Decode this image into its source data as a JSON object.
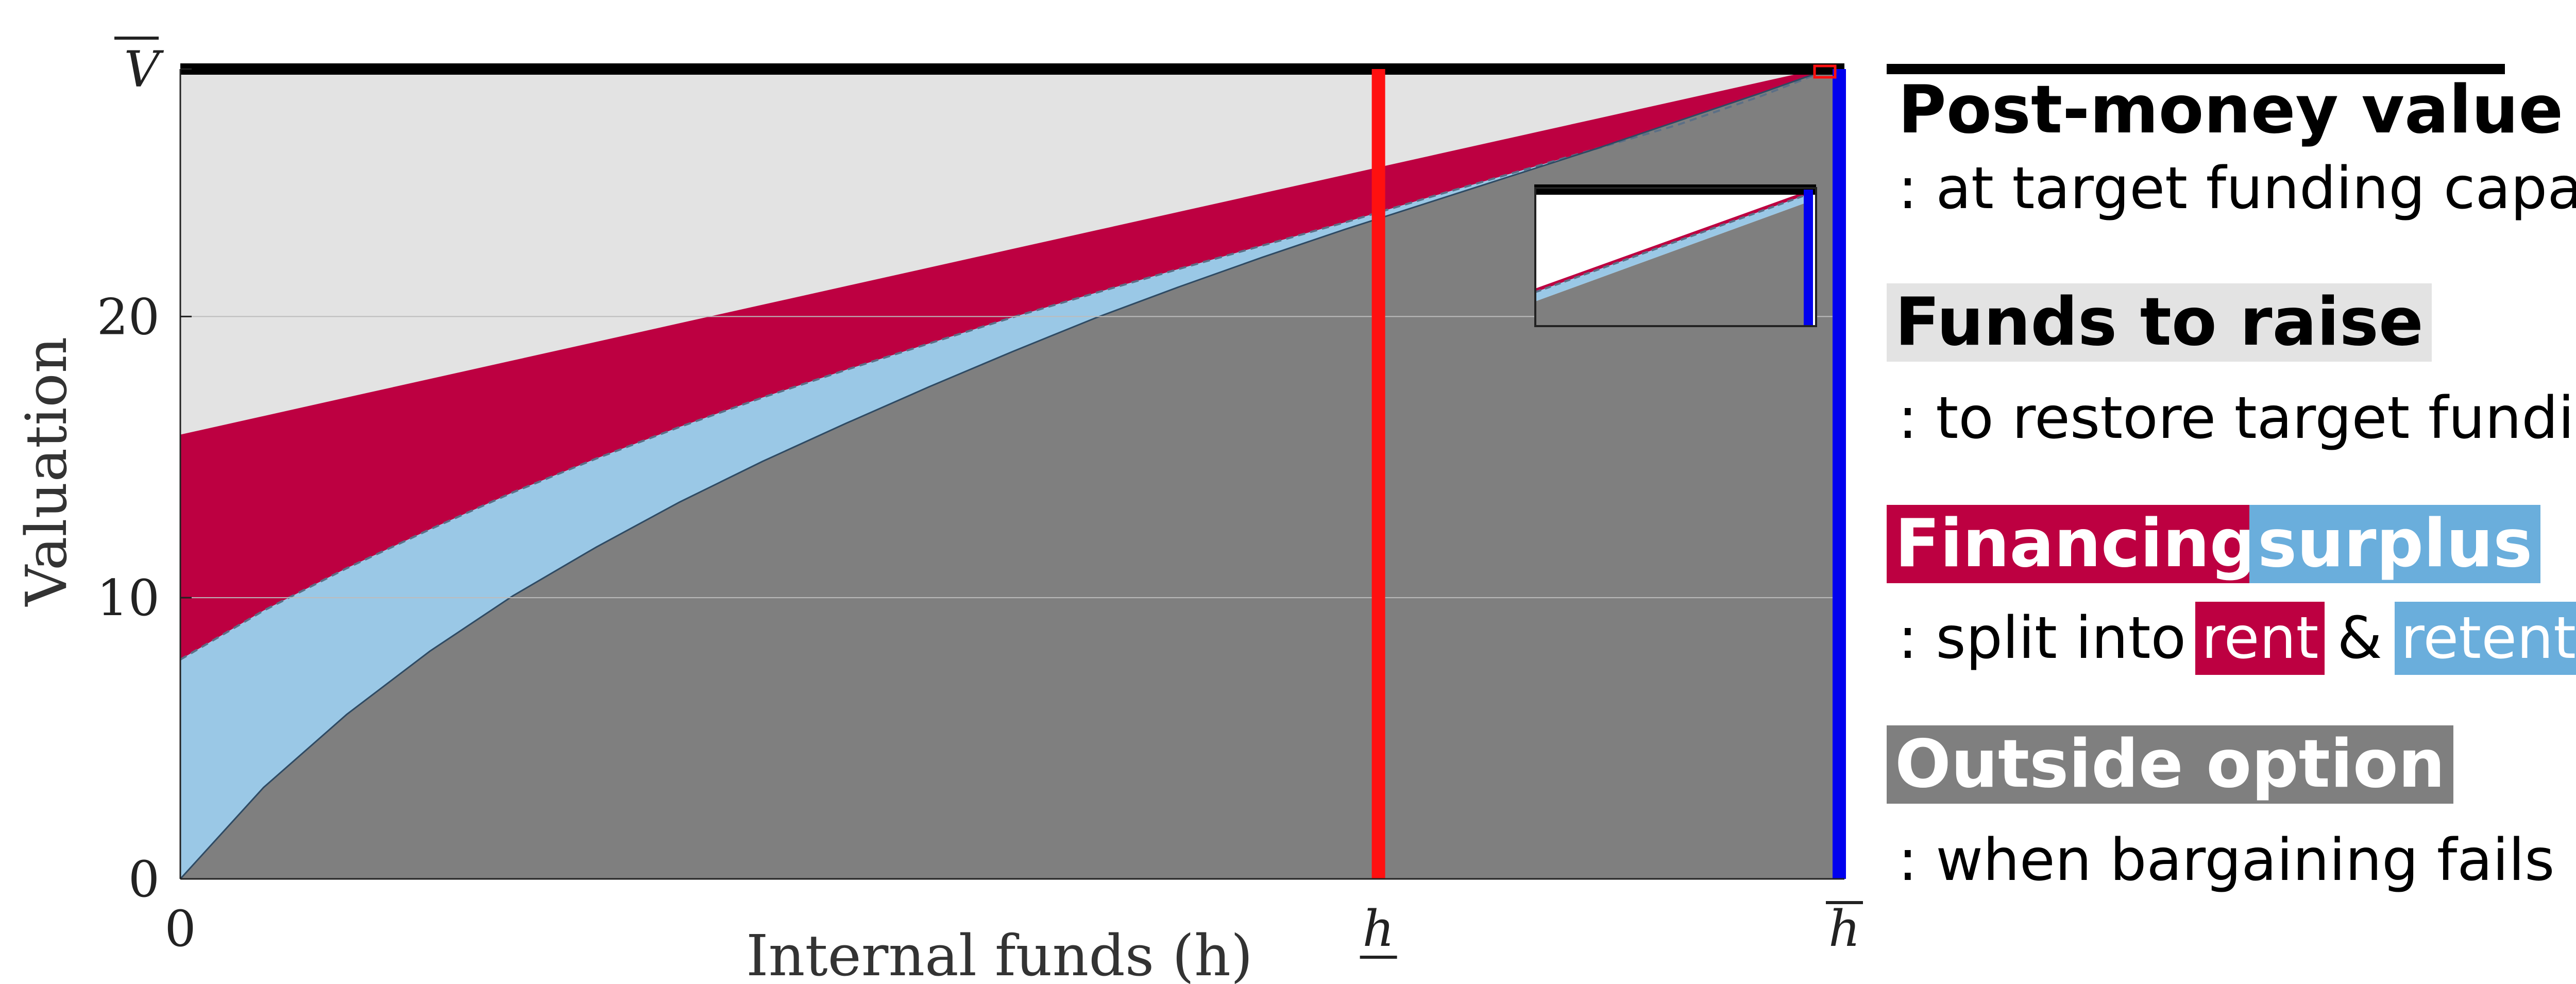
{
  "chart_data": {
    "type": "area",
    "xlabel": "Internal funds (h)",
    "ylabel": "Valuation",
    "x_ticks": [
      {
        "pos": 0,
        "label": "0"
      },
      {
        "pos": 0.72,
        "label": "h",
        "decor": "underline"
      },
      {
        "pos": 1.0,
        "label": "h",
        "decor": "overline"
      }
    ],
    "y_ticks": [
      {
        "value": 0,
        "label": "0"
      },
      {
        "value": 10,
        "label": "10"
      },
      {
        "value": 20,
        "label": "20"
      },
      {
        "value": 28.8,
        "label": "V",
        "decor": "overline"
      }
    ],
    "ylim": [
      0,
      28.8
    ],
    "xlim": [
      0,
      1.0
    ],
    "grid": "horizontal",
    "x": [
      0,
      0.05,
      0.1,
      0.15,
      0.2,
      0.25,
      0.3,
      0.35,
      0.4,
      0.45,
      0.5,
      0.55,
      0.6,
      0.65,
      0.7,
      0.75,
      0.8,
      0.85,
      0.9,
      0.95,
      1.0
    ],
    "series": [
      {
        "key": "post_money",
        "values": [
          28.8,
          28.8,
          28.8,
          28.8,
          28.8,
          28.8,
          28.8,
          28.8,
          28.8,
          28.8,
          28.8,
          28.8,
          28.8,
          28.8,
          28.8,
          28.8,
          28.8,
          28.8,
          28.8,
          28.8,
          28.8
        ]
      },
      {
        "key": "rent_upper",
        "values": [
          15.8,
          16.46,
          17.12,
          17.78,
          18.44,
          19.1,
          19.76,
          20.42,
          21.08,
          21.74,
          22.4,
          23.06,
          23.72,
          24.38,
          25.04,
          25.7,
          26.36,
          27.02,
          27.68,
          28.34,
          29.0
        ]
      },
      {
        "key": "retention_upper",
        "values": [
          7.8,
          9.54,
          11.05,
          12.43,
          13.75,
          14.95,
          16.07,
          17.12,
          18.1,
          19.04,
          19.97,
          20.84,
          21.69,
          22.52,
          23.35,
          24.23,
          25.09,
          25.95,
          26.82,
          27.84,
          29.0
        ]
      },
      {
        "key": "outside_option",
        "values": [
          0,
          3.25,
          5.85,
          8.1,
          10.07,
          11.8,
          13.4,
          14.85,
          16.2,
          17.5,
          18.75,
          19.95,
          21.05,
          22.1,
          23.1,
          24.05,
          25.0,
          25.95,
          26.95,
          27.95,
          29.0
        ]
      }
    ],
    "colors": {
      "funds_to_raise": "#e3e3e3",
      "rent": "#bd0041",
      "retention": "#9ac8e6",
      "outside_option": "#7f7f7f",
      "top_bar": "#000000",
      "h_under_line": "#ff1010",
      "h_bar_line": "#0000ee",
      "grid": "#bcbcbc"
    }
  },
  "legend": {
    "post_money": {
      "title": "Post-money value",
      "desc": ": at target funding capacity"
    },
    "funds": {
      "title": "Funds to raise",
      "desc": ": to restore target funding"
    },
    "surplus": {
      "title_a": "Financing",
      "title_b": "surplus",
      "desc_pre": ": split into",
      "rent": "rent",
      "amp": "&",
      "retention": "retention"
    },
    "outside": {
      "title": "Outside option",
      "desc": ": when bargaining fails"
    }
  }
}
